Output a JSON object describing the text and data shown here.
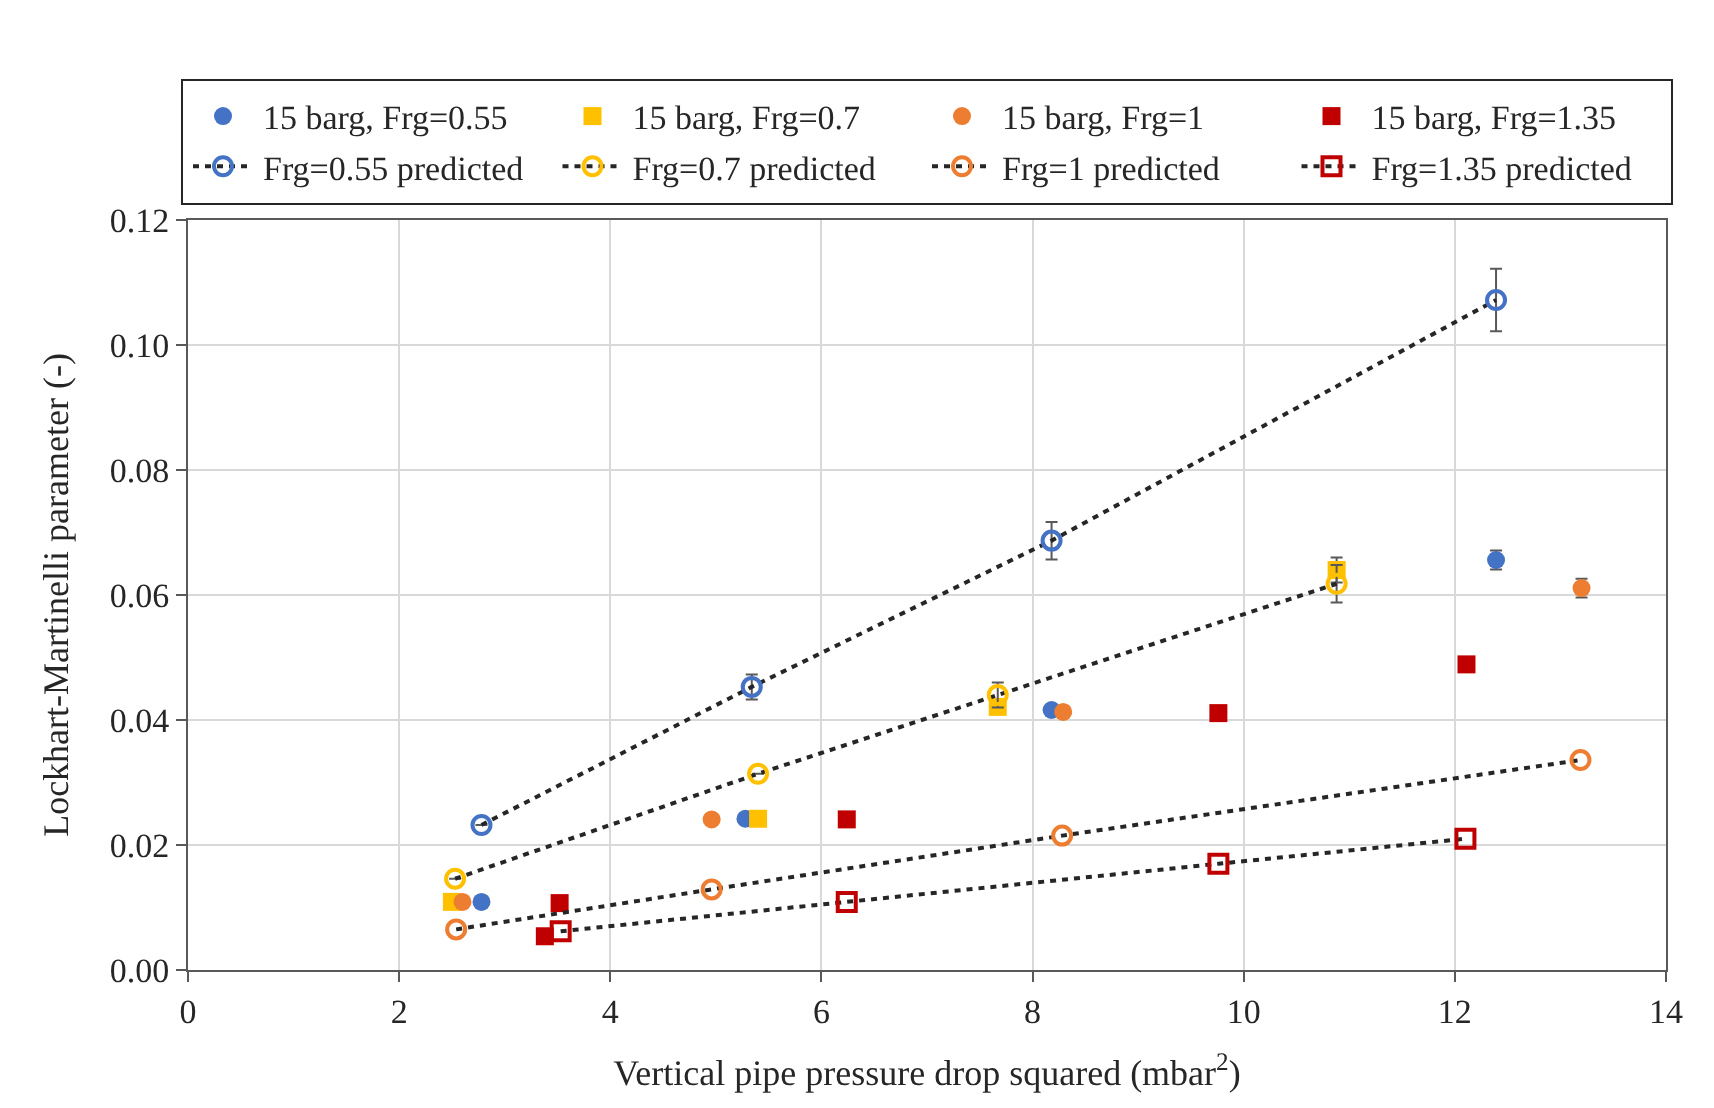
{
  "chart_data": {
    "type": "scatter",
    "xlabel": "Vertical pipe pressure drop squared (mbar$^{2}$)",
    "ylabel": "Lockhart-Martinelli parameter (-)",
    "xlim": [
      0,
      14
    ],
    "xticks": [
      0,
      2,
      4,
      6,
      8,
      10,
      12,
      14
    ],
    "ylim": [
      0,
      0.12
    ],
    "yticks": [
      {
        "value": 0,
        "label": "0.00"
      },
      {
        "value": 0.02,
        "label": "0.02"
      },
      {
        "value": 0.04,
        "label": "0.04"
      },
      {
        "value": 0.06,
        "label": "0.06"
      },
      {
        "value": 0.08,
        "label": "0.08"
      },
      {
        "value": 0.1,
        "label": "0.10"
      },
      {
        "value": 0.12,
        "label": "0.12"
      }
    ],
    "grid": true,
    "legend": "top",
    "series": [
      {
        "name": "15 barg, Frg=0.55",
        "marker": "circle",
        "color": "#4472c4",
        "x": [
          2.78,
          5.28,
          8.18,
          12.39
        ],
        "values": [
          0.0109,
          0.0242,
          0.0416,
          0.0656
        ],
        "errors": [
          null,
          null,
          null,
          0.0015
        ]
      },
      {
        "name": "15 barg, Frg=0.7",
        "marker": "square",
        "color": "#ffc000",
        "x": [
          2.5,
          5.4,
          7.67,
          10.88
        ],
        "values": [
          0.0109,
          0.0242,
          0.0421,
          0.064
        ],
        "errors": [
          null,
          null,
          null,
          0.002
        ]
      },
      {
        "name": "15 barg, Frg=1",
        "marker": "circle",
        "color": "#ed7d31",
        "x": [
          2.6,
          4.96,
          8.29,
          13.2
        ],
        "values": [
          0.0109,
          0.0241,
          0.0413,
          0.0611
        ],
        "errors": [
          null,
          null,
          null,
          0.0015
        ]
      },
      {
        "name": "15 barg, Frg=1.35",
        "marker": "square",
        "color": "#c00000",
        "x": [
          3.38,
          3.52,
          6.24,
          9.76,
          12.11
        ],
        "values": [
          0.0054,
          0.0107,
          0.0241,
          0.0411,
          0.0489
        ]
      },
      {
        "name": "Frg=0.55 predicted",
        "type": "line",
        "marker": "circle",
        "line_style": "dotted",
        "color": "#4472c4",
        "x": [
          2.78,
          5.34,
          8.18,
          12.39
        ],
        "values": [
          0.0232,
          0.0453,
          0.0687,
          0.1072
        ],
        "errors": [
          null,
          0.002,
          0.003,
          0.005
        ]
      },
      {
        "name": "Frg=0.7 predicted",
        "type": "line",
        "marker": "circle",
        "line_style": "dotted",
        "color": "#ffc000",
        "x": [
          2.53,
          5.4,
          7.67,
          10.88
        ],
        "values": [
          0.0146,
          0.0314,
          0.044,
          0.0618
        ],
        "errors": [
          null,
          null,
          0.002,
          0.003
        ]
      },
      {
        "name": "Frg=1 predicted",
        "type": "line",
        "marker": "circle",
        "line_style": "dotted",
        "color": "#ed7d31",
        "x": [
          2.54,
          4.96,
          8.28,
          13.19
        ],
        "values": [
          0.0065,
          0.0129,
          0.0215,
          0.0336
        ]
      },
      {
        "name": "Frg=1.35 predicted",
        "type": "line",
        "marker": "square",
        "line_style": "dotted",
        "color": "#c00000",
        "x": [
          3.53,
          6.24,
          9.76,
          12.1
        ],
        "values": [
          0.0062,
          0.0109,
          0.017,
          0.021
        ]
      }
    ]
  }
}
